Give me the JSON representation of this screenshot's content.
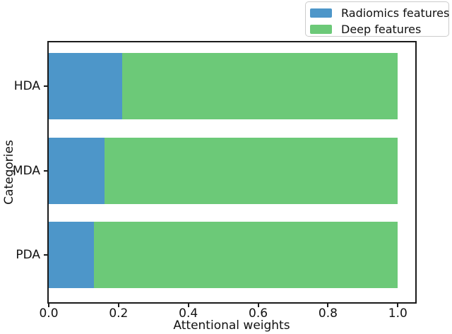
{
  "chart_data": {
    "type": "bar",
    "orientation": "horizontal",
    "stacked": true,
    "title": "",
    "xlabel": "Attentional weights",
    "ylabel": "Categories",
    "categories": [
      "HDA",
      "MDA",
      "PDA"
    ],
    "series": [
      {
        "name": "Radiomics features",
        "color": "#4d96c9",
        "values": [
          0.21,
          0.16,
          0.13
        ]
      },
      {
        "name": "Deep features",
        "color": "#6cc978",
        "values": [
          0.79,
          0.84,
          0.87
        ]
      }
    ],
    "xlim": [
      0.0,
      1.05
    ],
    "xticks": [
      0.0,
      0.2,
      0.4,
      0.6,
      0.8,
      1.0
    ],
    "xtick_labels": [
      "0.0",
      "0.2",
      "0.4",
      "0.6",
      "0.8",
      "1.0"
    ],
    "grid": false,
    "legend_position": "upper right, outside axes",
    "legend_entries": [
      "Radiomics features",
      "Deep features"
    ]
  }
}
